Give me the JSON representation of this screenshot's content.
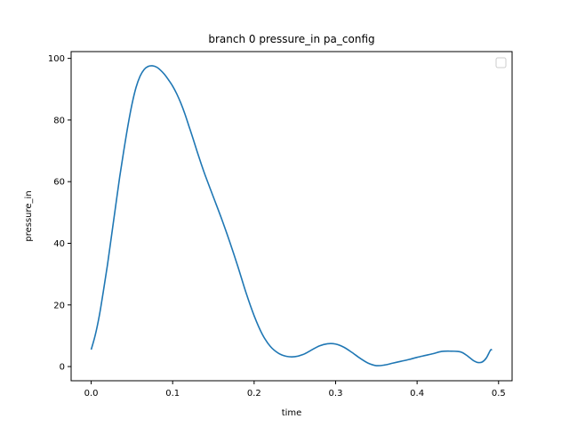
{
  "chart_data": {
    "type": "line",
    "title": "branch 0 pressure_in pa_config",
    "xlabel": "time",
    "ylabel": "pressure_in",
    "xlim": [
      -0.0246,
      0.5166
    ],
    "ylim": [
      -4.6,
      102.2
    ],
    "xticks": [
      0.0,
      0.1,
      0.2,
      0.3,
      0.4,
      0.5
    ],
    "xtick_labels": [
      "0.0",
      "0.1",
      "0.2",
      "0.3",
      "0.4",
      "0.5"
    ],
    "yticks": [
      0,
      20,
      40,
      60,
      80,
      100
    ],
    "ytick_labels": [
      "0",
      "20",
      "40",
      "60",
      "80",
      "100"
    ],
    "grid": false,
    "legend": "upper right, empty",
    "series": [
      {
        "color": "#1f77b4",
        "x": [
          0.0,
          0.005,
          0.01,
          0.015,
          0.02,
          0.025,
          0.03,
          0.035,
          0.04,
          0.045,
          0.05,
          0.055,
          0.06,
          0.065,
          0.07,
          0.075,
          0.08,
          0.085,
          0.09,
          0.095,
          0.1,
          0.105,
          0.11,
          0.115,
          0.12,
          0.125,
          0.13,
          0.135,
          0.14,
          0.15,
          0.16,
          0.17,
          0.18,
          0.19,
          0.2,
          0.21,
          0.22,
          0.23,
          0.24,
          0.25,
          0.26,
          0.27,
          0.28,
          0.29,
          0.3,
          0.31,
          0.32,
          0.33,
          0.34,
          0.35,
          0.36,
          0.37,
          0.38,
          0.39,
          0.4,
          0.41,
          0.42,
          0.43,
          0.44,
          0.45,
          0.455,
          0.46,
          0.465,
          0.47,
          0.475,
          0.48,
          0.485,
          0.49,
          0.492
        ],
        "y": [
          5.5,
          10.2,
          16.5,
          24.5,
          33.0,
          42.5,
          52.0,
          61.5,
          70.0,
          78.0,
          85.0,
          90.5,
          94.2,
          96.4,
          97.4,
          97.6,
          97.2,
          96.2,
          94.8,
          93.0,
          91.0,
          88.5,
          85.5,
          82.0,
          78.0,
          74.0,
          69.8,
          65.8,
          62.0,
          55.0,
          48.0,
          40.5,
          32.5,
          24.0,
          16.5,
          10.5,
          6.5,
          4.3,
          3.3,
          3.2,
          3.9,
          5.3,
          6.7,
          7.4,
          7.3,
          6.3,
          4.6,
          2.7,
          1.1,
          0.3,
          0.5,
          1.1,
          1.7,
          2.3,
          3.0,
          3.6,
          4.2,
          4.9,
          5.0,
          4.9,
          4.6,
          3.8,
          2.8,
          1.8,
          1.3,
          1.5,
          2.8,
          5.3,
          5.4
        ]
      }
    ]
  }
}
